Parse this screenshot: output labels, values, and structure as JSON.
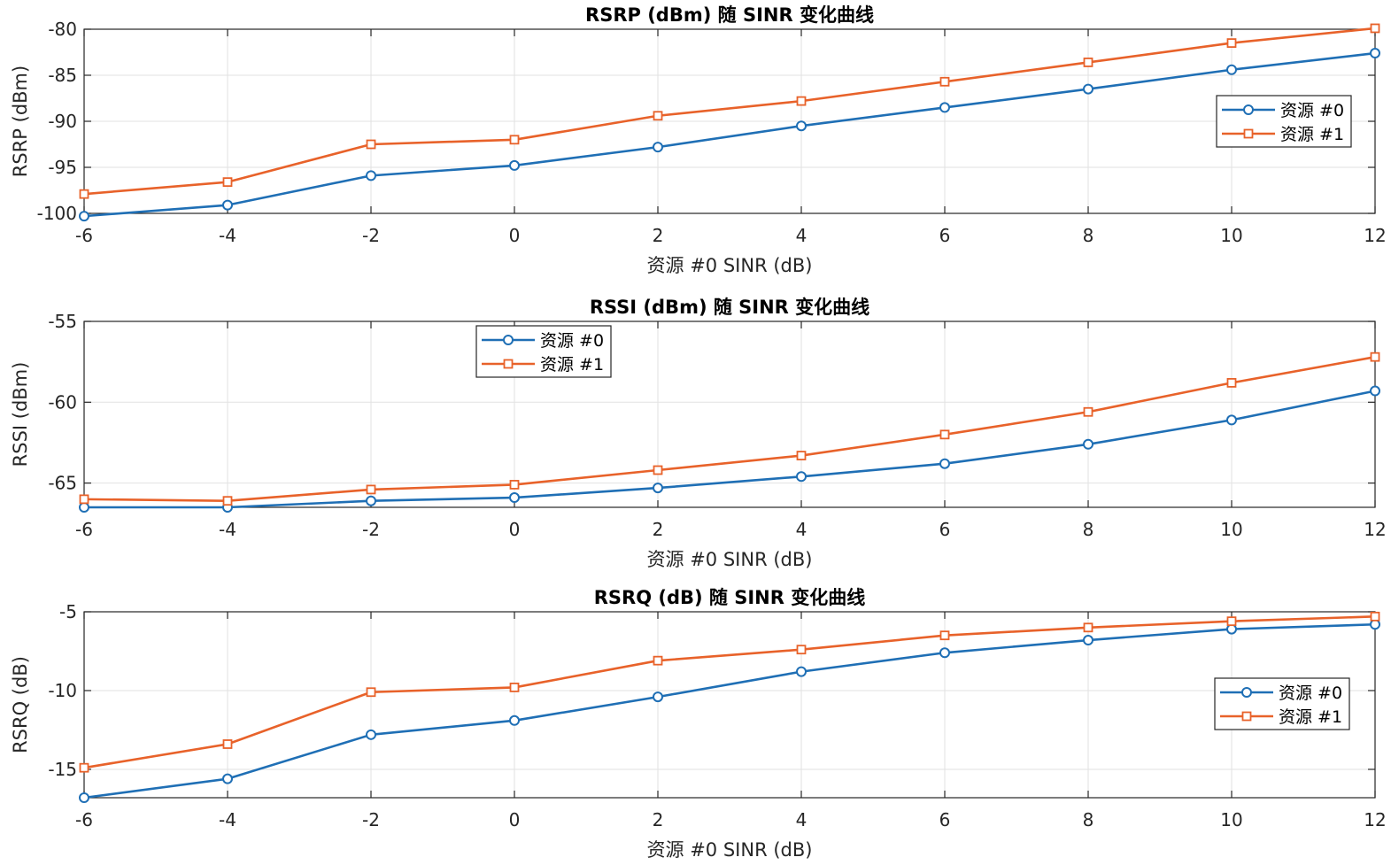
{
  "figure": {
    "background": "#ffffff",
    "series_colors": [
      "#1f6fb5",
      "#e8622a"
    ]
  },
  "chart_data": [
    {
      "type": "line",
      "title": "RSRP (dBm) 随 SINR 变化曲线",
      "xlabel": "资源 #0 SINR (dB)",
      "ylabel": "RSRP (dBm)",
      "xlim": [
        -6,
        12
      ],
      "ylim": [
        -100,
        -80
      ],
      "xticks": [
        -6,
        -4,
        -2,
        0,
        2,
        4,
        6,
        8,
        10,
        12
      ],
      "yticks": [
        -80,
        -85,
        -90,
        -95,
        -100
      ],
      "x": [
        -6,
        -4,
        -2,
        0,
        2,
        4,
        6,
        8,
        10,
        12
      ],
      "grid": true,
      "legend_position": "right",
      "series": [
        {
          "name": "资源 #0",
          "marker": "circle",
          "values": [
            -100.3,
            -99.1,
            -95.9,
            -94.8,
            -92.8,
            -90.5,
            -88.5,
            -86.5,
            -84.4,
            -82.6
          ]
        },
        {
          "name": "资源 #1",
          "marker": "square",
          "values": [
            -97.9,
            -96.6,
            -92.5,
            -92.0,
            -89.4,
            -87.8,
            -85.7,
            -83.6,
            -81.5,
            -79.9
          ]
        }
      ]
    },
    {
      "type": "line",
      "title": "RSSI (dBm) 随 SINR 变化曲线",
      "xlabel": "资源 #0 SINR (dB)",
      "ylabel": "RSSI (dBm)",
      "xlim": [
        -6,
        12
      ],
      "ylim": [
        -66.5,
        -55
      ],
      "xticks": [
        -6,
        -4,
        -2,
        0,
        2,
        4,
        6,
        8,
        10,
        12
      ],
      "yticks": [
        -55,
        -60,
        -65
      ],
      "x": [
        -6,
        -4,
        -2,
        0,
        2,
        4,
        6,
        8,
        10,
        12
      ],
      "grid": true,
      "legend_position": "top-left",
      "series": [
        {
          "name": "资源 #0",
          "marker": "circle",
          "values": [
            -66.5,
            -66.5,
            -66.1,
            -65.9,
            -65.3,
            -64.6,
            -63.8,
            -62.6,
            -61.1,
            -59.3
          ]
        },
        {
          "name": "资源 #1",
          "marker": "square",
          "values": [
            -66.0,
            -66.1,
            -65.4,
            -65.1,
            -64.2,
            -63.3,
            -62.0,
            -60.6,
            -58.8,
            -57.2
          ]
        }
      ]
    },
    {
      "type": "line",
      "title": "RSRQ (dB) 随 SINR 变化曲线",
      "xlabel": "资源 #0 SINR (dB)",
      "ylabel": "RSRQ (dB)",
      "xlim": [
        -6,
        12
      ],
      "ylim": [
        -16.8,
        -5
      ],
      "xticks": [
        -6,
        -4,
        -2,
        0,
        2,
        4,
        6,
        8,
        10,
        12
      ],
      "yticks": [
        -5,
        -10,
        -15
      ],
      "x": [
        -6,
        -4,
        -2,
        0,
        2,
        4,
        6,
        8,
        10,
        12
      ],
      "grid": true,
      "legend_position": "right",
      "series": [
        {
          "name": "资源 #0",
          "marker": "circle",
          "values": [
            -16.8,
            -15.6,
            -12.8,
            -11.9,
            -10.4,
            -8.8,
            -7.6,
            -6.8,
            -6.1,
            -5.8
          ]
        },
        {
          "name": "资源 #1",
          "marker": "square",
          "values": [
            -14.9,
            -13.4,
            -10.1,
            -9.8,
            -8.1,
            -7.4,
            -6.5,
            -6.0,
            -5.6,
            -5.3
          ]
        }
      ]
    }
  ]
}
